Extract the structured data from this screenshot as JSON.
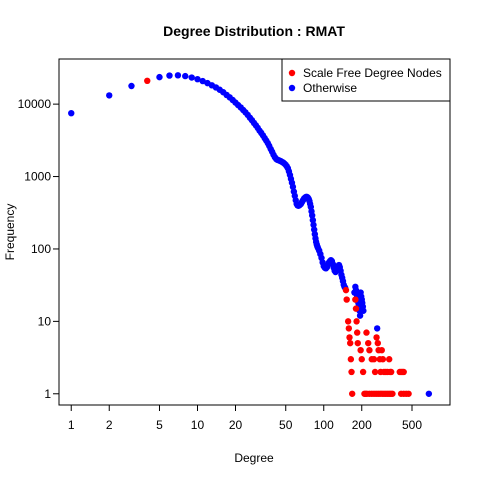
{
  "chart_data": {
    "type": "scatter",
    "title": "Degree Distribution : RMAT",
    "xlabel": "Degree",
    "ylabel": "Frequency",
    "xscale": "log",
    "yscale": "log",
    "xlim": [
      0.8,
      1000
    ],
    "ylim": [
      0.7,
      42000
    ],
    "xticks": [
      1,
      2,
      5,
      10,
      20,
      50,
      100,
      200,
      500
    ],
    "yticks": [
      1,
      10,
      100,
      1000,
      10000
    ],
    "legend_position": "top-right",
    "series": [
      {
        "name": "Scale Free Degree Nodes",
        "color": "#ff0000",
        "points": [
          [
            4,
            21000
          ],
          [
            150,
            27
          ],
          [
            152,
            20
          ],
          [
            156,
            10
          ],
          [
            158,
            8
          ],
          [
            160,
            6
          ],
          [
            162,
            5
          ],
          [
            164,
            3
          ],
          [
            166,
            2
          ],
          [
            168,
            1
          ],
          [
            178,
            20
          ],
          [
            180,
            15
          ],
          [
            182,
            10
          ],
          [
            184,
            7
          ],
          [
            186,
            5
          ],
          [
            196,
            4
          ],
          [
            200,
            3
          ],
          [
            205,
            2
          ],
          [
            210,
            1
          ],
          [
            215,
            1
          ],
          [
            220,
            1
          ],
          [
            230,
            1
          ],
          [
            240,
            1
          ],
          [
            250,
            1
          ],
          [
            260,
            1
          ],
          [
            270,
            1
          ],
          [
            280,
            1
          ],
          [
            290,
            1
          ],
          [
            300,
            1
          ],
          [
            310,
            1
          ],
          [
            320,
            1
          ],
          [
            330,
            1
          ],
          [
            340,
            1
          ],
          [
            350,
            1
          ],
          [
            410,
            1
          ],
          [
            430,
            1
          ],
          [
            450,
            1
          ],
          [
            470,
            1
          ],
          [
            218,
            7
          ],
          [
            225,
            5
          ],
          [
            230,
            4
          ],
          [
            240,
            3
          ],
          [
            250,
            3
          ],
          [
            255,
            2
          ],
          [
            262,
            6
          ],
          [
            268,
            5
          ],
          [
            272,
            4
          ],
          [
            278,
            3
          ],
          [
            282,
            2
          ],
          [
            288,
            4
          ],
          [
            294,
            3
          ],
          [
            300,
            2
          ],
          [
            310,
            2
          ],
          [
            320,
            2
          ],
          [
            330,
            3
          ],
          [
            336,
            2
          ],
          [
            342,
            2
          ],
          [
            400,
            2
          ],
          [
            410,
            2
          ],
          [
            420,
            2
          ],
          [
            430,
            2
          ]
        ]
      },
      {
        "name": "Otherwise",
        "color": "#0000ff",
        "points": [
          [
            1,
            7500
          ],
          [
            2,
            13200
          ],
          [
            3,
            17800
          ],
          [
            5,
            23600
          ],
          [
            6,
            24800
          ],
          [
            7,
            25000
          ],
          [
            8,
            24400
          ],
          [
            9,
            23300
          ],
          [
            10,
            22100
          ],
          [
            11,
            20800
          ],
          [
            12,
            19500
          ],
          [
            13,
            18200
          ],
          [
            14,
            17000
          ],
          [
            15,
            15800
          ],
          [
            16,
            14600
          ],
          [
            17,
            13400
          ],
          [
            18,
            12400
          ],
          [
            19,
            11400
          ],
          [
            20,
            10500
          ],
          [
            21,
            9700
          ],
          [
            22,
            9000
          ],
          [
            23,
            8300
          ],
          [
            24,
            7700
          ],
          [
            25,
            7100
          ],
          [
            26,
            6500
          ],
          [
            27,
            6000
          ],
          [
            28,
            5500
          ],
          [
            29,
            5100
          ],
          [
            30,
            4700
          ],
          [
            31,
            4300
          ],
          [
            32,
            4000
          ],
          [
            33,
            3700
          ],
          [
            34,
            3400
          ],
          [
            35,
            3150
          ],
          [
            36,
            2900
          ],
          [
            37,
            2650
          ],
          [
            38,
            2400
          ],
          [
            39,
            2200
          ],
          [
            40,
            2000
          ],
          [
            41,
            1850
          ],
          [
            42,
            1750
          ],
          [
            43,
            1700
          ],
          [
            44,
            1680
          ],
          [
            45,
            1650
          ],
          [
            46,
            1620
          ],
          [
            47,
            1580
          ],
          [
            48,
            1550
          ],
          [
            49,
            1500
          ],
          [
            50,
            1450
          ],
          [
            51,
            1380
          ],
          [
            52,
            1300
          ],
          [
            53,
            1180
          ],
          [
            54,
            1050
          ],
          [
            55,
            930
          ],
          [
            56,
            820
          ],
          [
            57,
            720
          ],
          [
            58,
            620
          ],
          [
            59,
            540
          ],
          [
            60,
            470
          ],
          [
            61,
            420
          ],
          [
            62,
            400
          ],
          [
            63,
            395
          ],
          [
            64,
            400
          ],
          [
            65,
            410
          ],
          [
            66,
            420
          ],
          [
            67,
            440
          ],
          [
            68,
            460
          ],
          [
            69,
            480
          ],
          [
            70,
            500
          ],
          [
            71,
            510
          ],
          [
            72,
            520
          ],
          [
            73,
            525
          ],
          [
            74,
            520
          ],
          [
            75,
            510
          ],
          [
            76,
            490
          ],
          [
            77,
            460
          ],
          [
            78,
            420
          ],
          [
            79,
            380
          ],
          [
            80,
            330
          ],
          [
            81,
            290
          ],
          [
            82,
            250
          ],
          [
            83,
            215
          ],
          [
            84,
            185
          ],
          [
            85,
            160
          ],
          [
            86,
            140
          ],
          [
            87,
            125
          ],
          [
            88,
            115
          ],
          [
            89,
            108
          ],
          [
            90,
            103
          ],
          [
            92,
            95
          ],
          [
            94,
            85
          ],
          [
            96,
            75
          ],
          [
            98,
            65
          ],
          [
            100,
            58
          ],
          [
            102,
            55
          ],
          [
            104,
            54
          ],
          [
            106,
            56
          ],
          [
            108,
            60
          ],
          [
            110,
            65
          ],
          [
            112,
            68
          ],
          [
            114,
            70
          ],
          [
            116,
            68
          ],
          [
            118,
            62
          ],
          [
            120,
            55
          ],
          [
            122,
            50
          ],
          [
            124,
            48
          ],
          [
            126,
            50
          ],
          [
            128,
            55
          ],
          [
            130,
            58
          ],
          [
            132,
            60
          ],
          [
            134,
            56
          ],
          [
            136,
            50
          ],
          [
            138,
            44
          ],
          [
            140,
            40
          ],
          [
            142,
            36
          ],
          [
            144,
            32
          ],
          [
            146,
            30
          ],
          [
            148,
            29
          ],
          [
            175,
            25
          ],
          [
            178,
            30
          ],
          [
            180,
            27
          ],
          [
            182,
            24
          ],
          [
            184,
            22
          ],
          [
            186,
            20
          ],
          [
            188,
            18
          ],
          [
            190,
            17
          ],
          [
            192,
            14
          ],
          [
            194,
            12
          ],
          [
            196,
            25
          ],
          [
            198,
            22
          ],
          [
            200,
            20
          ],
          [
            202,
            18
          ],
          [
            204,
            16
          ],
          [
            206,
            14
          ],
          [
            265,
            8
          ],
          [
            680,
            1
          ]
        ]
      }
    ]
  }
}
